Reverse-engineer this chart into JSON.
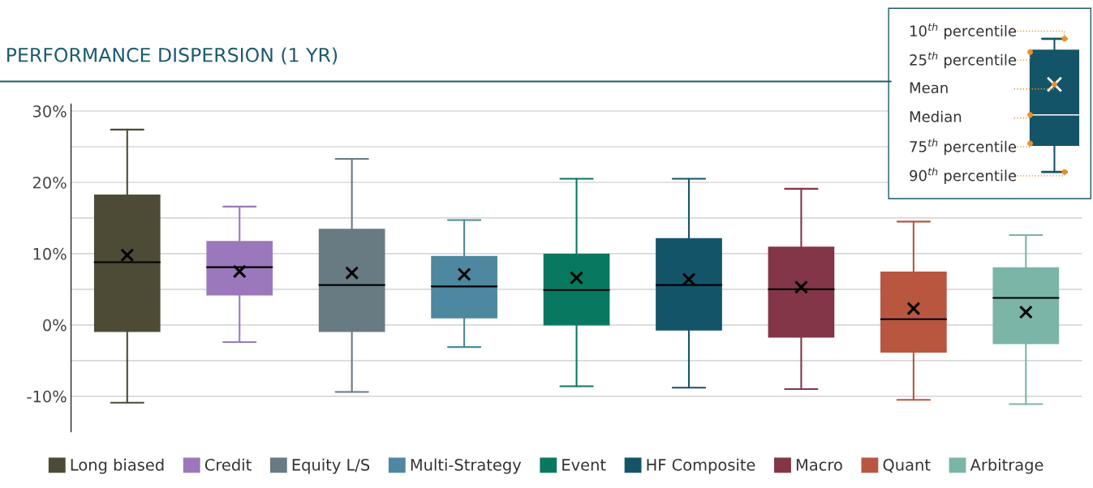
{
  "chart_data": {
    "type": "box",
    "title": "PERFORMANCE DISPERSION (1 YR)",
    "categories": [
      null,
      null,
      null,
      null,
      null,
      null,
      null,
      null,
      null
    ],
    "series": [
      {
        "name": "Long biased",
        "color": "#4d4a36",
        "boxes": [
          {
            "low": -10.9,
            "q1": -0.9,
            "median": 8.8,
            "q3": 18.2,
            "high": 27.4,
            "mean": 9.8
          },
          null,
          null,
          null,
          null,
          null,
          null,
          null,
          null
        ]
      },
      {
        "name": "Credit",
        "color": "#9b78bb",
        "boxes": [
          null,
          {
            "low": -2.4,
            "q1": 4.2,
            "median": 8.1,
            "q3": 11.7,
            "high": 16.6,
            "mean": 7.5
          },
          null,
          null,
          null,
          null,
          null,
          null,
          null
        ]
      },
      {
        "name": "Equity L/S",
        "color": "#687a82",
        "boxes": [
          null,
          null,
          {
            "low": -9.4,
            "q1": -0.9,
            "median": 5.6,
            "q3": 13.4,
            "high": 23.3,
            "mean": 7.3
          },
          null,
          null,
          null,
          null,
          null,
          null
        ]
      },
      {
        "name": "Multi-Strategy",
        "color": "#4d87a0",
        "boxes": [
          null,
          null,
          null,
          {
            "low": -3.1,
            "q1": 1.0,
            "median": 5.4,
            "q3": 9.6,
            "high": 14.7,
            "mean": 7.1
          },
          null,
          null,
          null,
          null,
          null
        ]
      },
      {
        "name": "Event",
        "color": "#087860",
        "boxes": [
          null,
          null,
          null,
          null,
          {
            "low": -8.6,
            "q1": 0.0,
            "median": 4.9,
            "q3": 9.9,
            "high": 20.5,
            "mean": 6.6
          },
          null,
          null,
          null,
          null
        ]
      },
      {
        "name": "HF Composite",
        "color": "#145469",
        "boxes": [
          null,
          null,
          null,
          null,
          null,
          {
            "low": -8.8,
            "q1": -0.7,
            "median": 5.6,
            "q3": 12.1,
            "high": 20.5,
            "mean": 6.4
          },
          null,
          null,
          null
        ]
      },
      {
        "name": "Macro",
        "color": "#823647",
        "boxes": [
          null,
          null,
          null,
          null,
          null,
          null,
          {
            "low": -9.0,
            "q1": -1.7,
            "median": 5.0,
            "q3": 10.9,
            "high": 19.1,
            "mean": 5.3
          },
          null,
          null
        ]
      },
      {
        "name": "Quant",
        "color": "#b85640",
        "boxes": [
          null,
          null,
          null,
          null,
          null,
          null,
          null,
          {
            "low": -10.5,
            "q1": -3.8,
            "median": 0.8,
            "q3": 7.4,
            "high": 14.5,
            "mean": 2.3
          },
          null
        ]
      },
      {
        "name": "Arbitrage",
        "color": "#7ab5a8",
        "boxes": [
          null,
          null,
          null,
          null,
          null,
          null,
          null,
          null,
          {
            "low": -11.1,
            "q1": -2.6,
            "median": 3.8,
            "q3": 8.0,
            "high": 12.6,
            "mean": 1.8
          }
        ]
      }
    ],
    "ylim": [
      -15,
      31
    ],
    "yticks": [
      {
        "value": -10,
        "label": "-10%"
      },
      {
        "value": -5,
        "label": null
      },
      {
        "value": 0,
        "label": "0%"
      },
      {
        "value": 5,
        "label": null
      },
      {
        "value": 10,
        "label": "10%"
      },
      {
        "value": 15,
        "label": null
      },
      {
        "value": 20,
        "label": "20%"
      },
      {
        "value": 25,
        "label": null
      },
      {
        "value": 30,
        "label": "30%"
      }
    ],
    "grid": "y",
    "legend": "bottom",
    "tick_labels": "y",
    "marker": "cross",
    "annotations": [
      "10$^{th}$ percentile",
      "25$^{th}$ percentile",
      "Mean",
      "Median",
      "75$^{th}$ percentile",
      "90$^{th}$ percentile"
    ]
  }
}
